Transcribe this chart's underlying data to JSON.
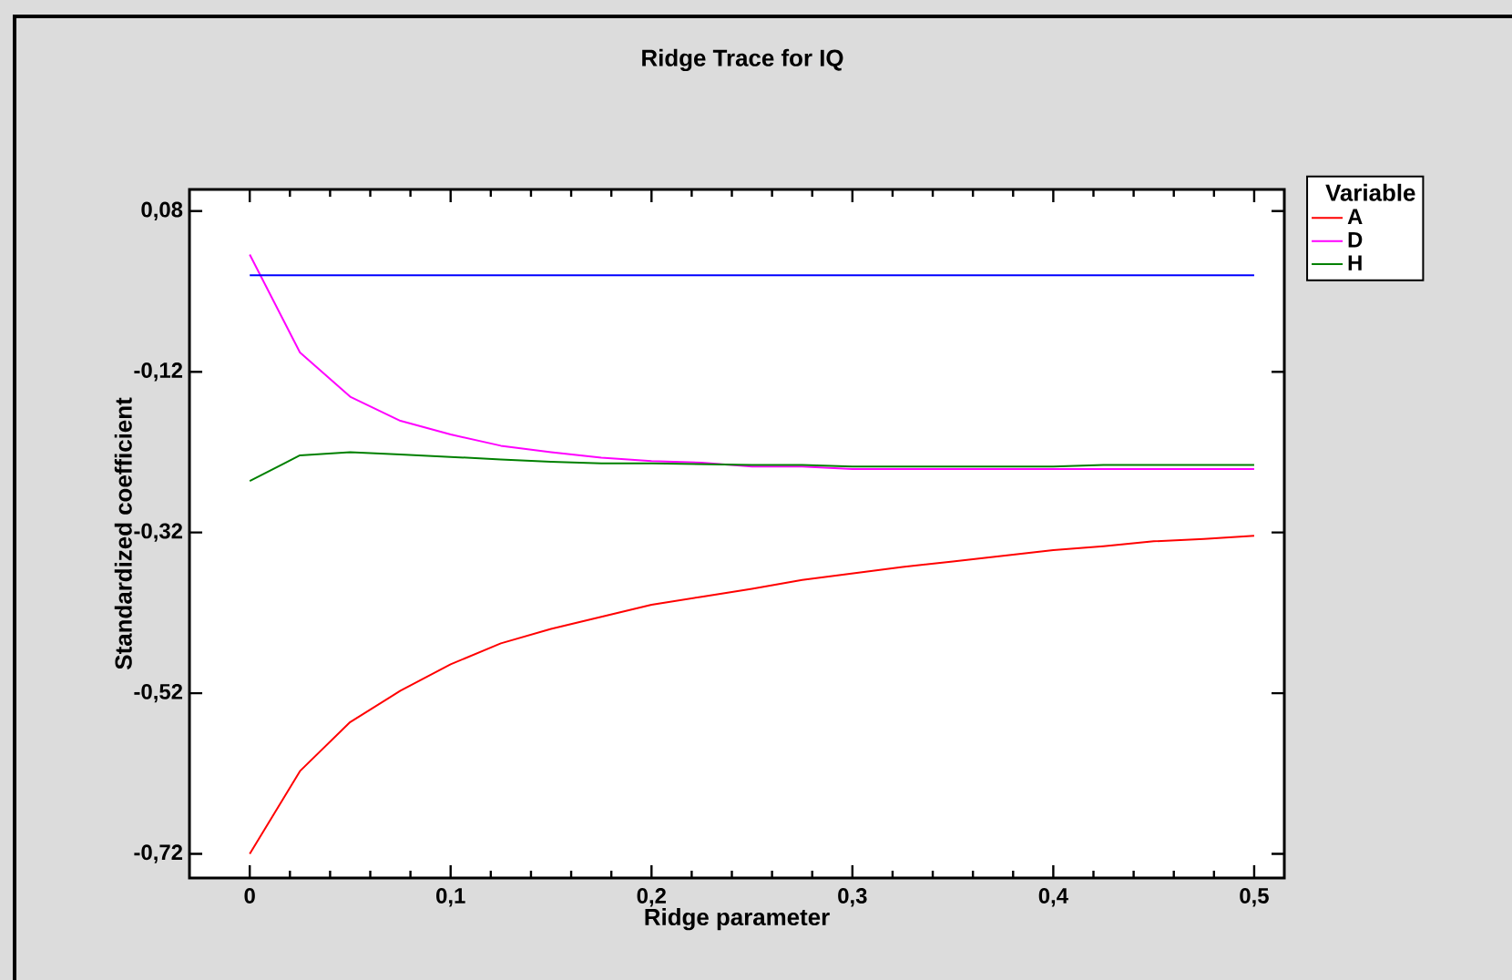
{
  "chart_data": {
    "type": "line",
    "title": "Ridge Trace for IQ",
    "xlabel": "Ridge parameter",
    "ylabel": "Standardized coefficient",
    "legend_title": "Variable",
    "x": [
      0,
      0.025,
      0.05,
      0.075,
      0.1,
      0.125,
      0.15,
      0.175,
      0.2,
      0.225,
      0.25,
      0.275,
      0.3,
      0.325,
      0.35,
      0.375,
      0.4,
      0.425,
      0.45,
      0.475,
      0.5
    ],
    "series": [
      {
        "name": "A",
        "color": "#ff0000",
        "values": [
          -0.72,
          -0.617,
          -0.556,
          -0.517,
          -0.484,
          -0.458,
          -0.44,
          -0.425,
          -0.41,
          -0.4,
          -0.39,
          -0.379,
          -0.371,
          -0.363,
          -0.356,
          -0.349,
          -0.342,
          -0.337,
          -0.331,
          -0.328,
          -0.324
        ]
      },
      {
        "name": "D",
        "color": "#ff00ff",
        "values": [
          0.026,
          -0.096,
          -0.151,
          -0.181,
          -0.198,
          -0.212,
          -0.22,
          -0.227,
          -0.231,
          -0.233,
          -0.238,
          -0.238,
          -0.241,
          -0.241,
          -0.241,
          -0.241,
          -0.241,
          -0.241,
          -0.241,
          -0.241,
          -0.241
        ]
      },
      {
        "name": "H",
        "color": "#008000",
        "values": [
          -0.256,
          -0.224,
          -0.22,
          -0.223,
          -0.226,
          -0.229,
          -0.232,
          -0.234,
          -0.234,
          -0.235,
          -0.236,
          -0.236,
          -0.238,
          -0.238,
          -0.238,
          -0.238,
          -0.238,
          -0.236,
          -0.236,
          -0.236,
          -0.236
        ]
      }
    ],
    "ref_lines": [
      {
        "axis": "y",
        "value": 0,
        "color": "#0000ff"
      }
    ],
    "xlim": [
      -0.03,
      0.515
    ],
    "ylim": [
      -0.75,
      0.107
    ],
    "xticks": [
      0,
      {
        "value": 0.1,
        "label": "0,1"
      },
      {
        "value": 0.2,
        "label": "0,2"
      },
      {
        "value": 0.3,
        "label": "0,3"
      },
      {
        "value": 0.4,
        "label": "0,4"
      },
      {
        "value": 0.5,
        "label": "0,5"
      }
    ],
    "yticks": [
      {
        "value": -0.72,
        "label": "-0,72"
      },
      {
        "value": -0.52,
        "label": "-0,52"
      },
      {
        "value": -0.32,
        "label": "-0,32"
      },
      {
        "value": -0.12,
        "label": "-0,12"
      },
      {
        "value": 0.08,
        "label": "0,08"
      }
    ],
    "grid": false,
    "legend": "top right",
    "line_style": "solid",
    "marker": "none"
  }
}
